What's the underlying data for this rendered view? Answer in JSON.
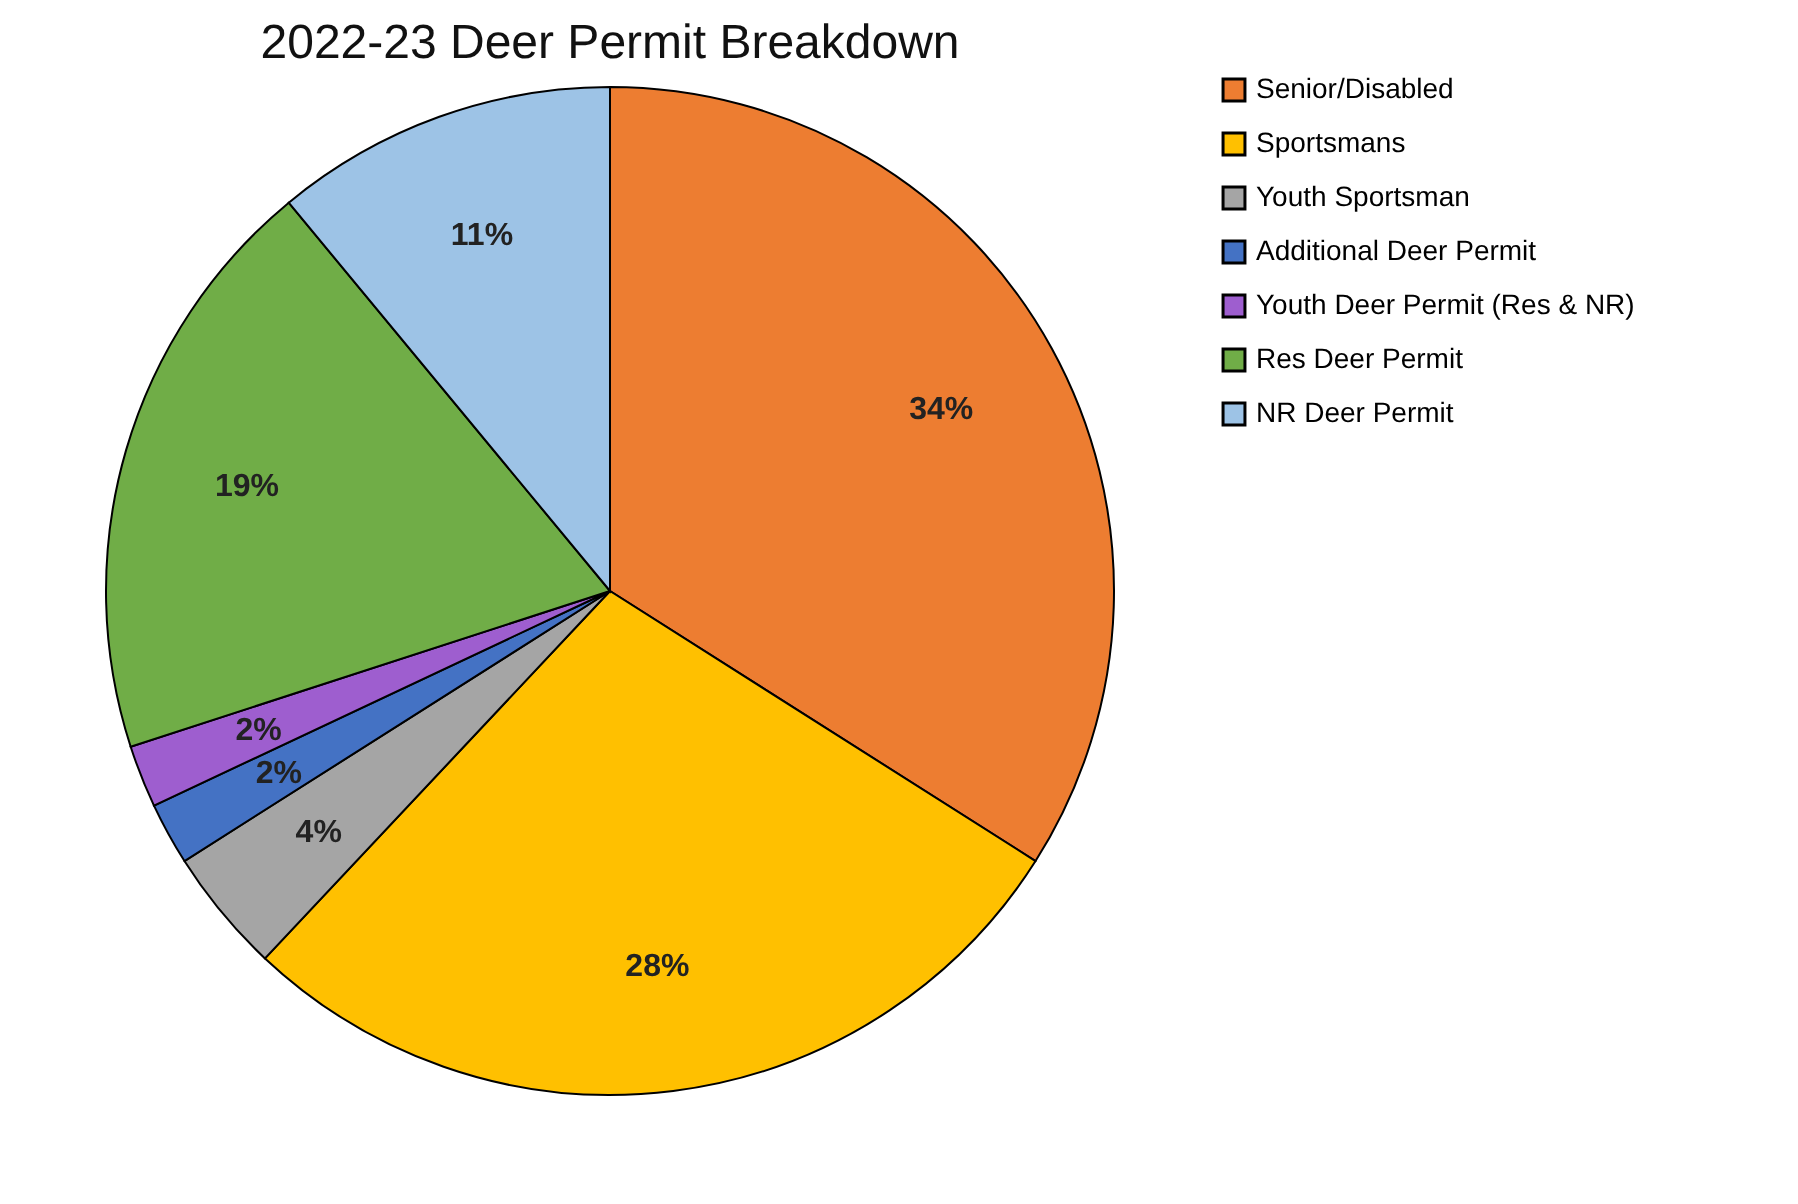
{
  "chart_data": {
    "type": "pie",
    "title": "2022-23 Deer Permit Breakdown",
    "categories": [
      "Senior/Disabled",
      "Sportsmans",
      "Youth Sportsman",
      "Additional Deer Permit",
      "Youth Deer Permit (Res & NR)",
      "Res Deer Permit",
      "NR Deer Permit"
    ],
    "values": [
      34,
      28,
      4,
      2,
      2,
      19,
      11
    ],
    "value_labels": [
      "34%",
      "28%",
      "4%",
      "2%",
      "2%",
      "19%",
      "11%"
    ],
    "colors": [
      "#ed7d31",
      "#ffc000",
      "#a5a5a5",
      "#4472c4",
      "#9e5ecf",
      "#70ad47",
      "#9dc3e6"
    ],
    "legend": "right"
  }
}
